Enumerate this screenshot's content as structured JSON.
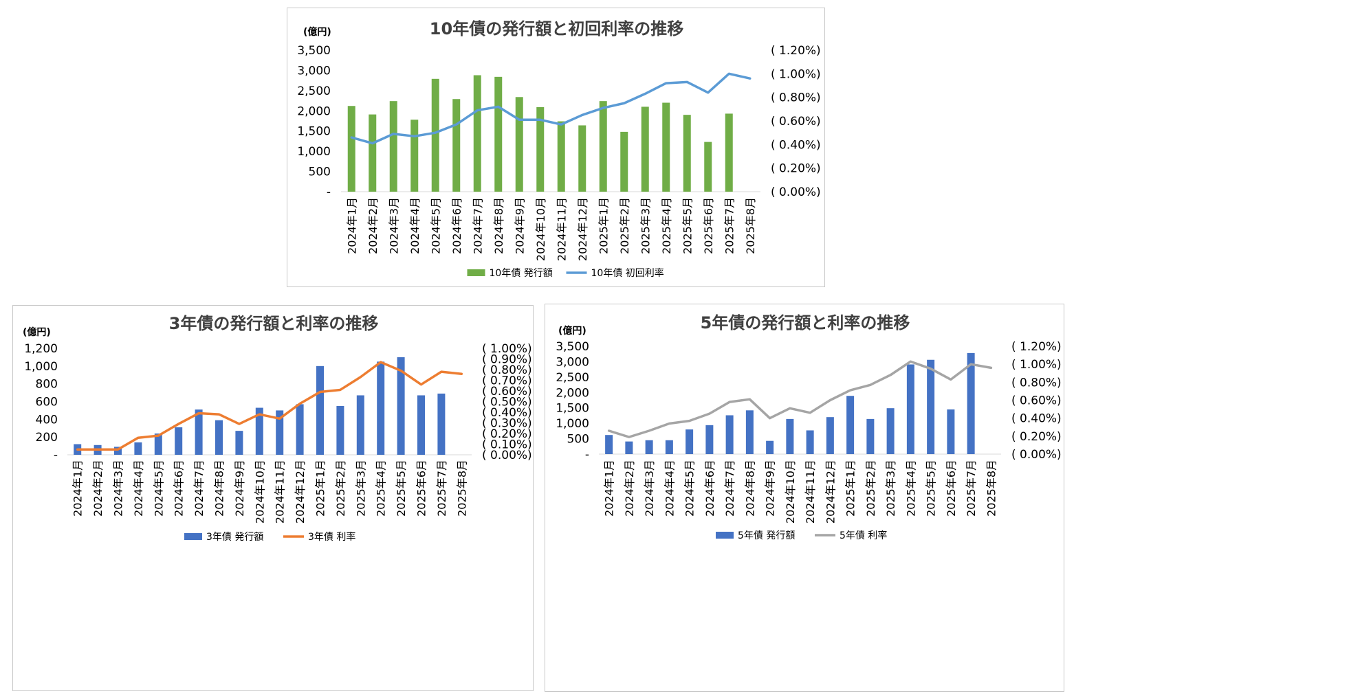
{
  "chart_data": [
    {
      "id": "10y",
      "type": "bar+line",
      "title": "10年債の発行額と初回利率の推移",
      "y_unit_label": "(億円)",
      "categories": [
        "2024年1月",
        "2024年2月",
        "2024年3月",
        "2024年4月",
        "2024年5月",
        "2024年6月",
        "2024年7月",
        "2024年8月",
        "2024年9月",
        "2024年10月",
        "2024年11月",
        "2024年12月",
        "2025年1月",
        "2025年2月",
        "2025年3月",
        "2025年4月",
        "2025年5月",
        "2025年6月",
        "2025年7月",
        "2025年8月"
      ],
      "y_ticks": [
        "-",
        "500",
        "1,000",
        "1,500",
        "2,000",
        "2,500",
        "3,000",
        "3,500"
      ],
      "y2_ticks": [
        "( 0.00%)",
        "( 0.20%)",
        "( 0.40%)",
        "( 0.60%)",
        "( 0.80%)",
        "( 1.00%)",
        "( 1.20%)"
      ],
      "ylim": [
        0,
        3500
      ],
      "y2lim": [
        0,
        1.2
      ],
      "bar_series": {
        "name": "10年債 発行額",
        "color": "#70ad47",
        "values": [
          2120,
          1910,
          2240,
          1780,
          2790,
          2290,
          2880,
          2840,
          2340,
          2090,
          1740,
          1640,
          2240,
          1480,
          2100,
          2200,
          1900,
          1230,
          1930,
          null
        ]
      },
      "line_series": {
        "name": "10年債 初回利率",
        "color": "#5b9bd5",
        "values": [
          0.46,
          0.41,
          0.49,
          0.47,
          0.5,
          0.57,
          0.69,
          0.72,
          0.61,
          0.61,
          0.57,
          0.65,
          0.71,
          0.75,
          0.83,
          0.92,
          0.93,
          0.84,
          1.0,
          0.96
        ]
      },
      "grid": false,
      "legend_position": "bottom"
    },
    {
      "id": "3y",
      "type": "bar+line",
      "title": "3年債の発行額と利率の推移",
      "y_unit_label": "(億円)",
      "categories": [
        "2024年1月",
        "2024年2月",
        "2024年3月",
        "2024年4月",
        "2024年5月",
        "2024年6月",
        "2024年7月",
        "2024年8月",
        "2024年9月",
        "2024年10月",
        "2024年11月",
        "2024年12月",
        "2025年1月",
        "2025年2月",
        "2025年3月",
        "2025年4月",
        "2025年5月",
        "2025年6月",
        "2025年7月",
        "2025年8月"
      ],
      "y_ticks": [
        "-",
        "200",
        "400",
        "600",
        "800",
        "1,000",
        "1,200"
      ],
      "y2_ticks": [
        "( 0.00%)",
        "( 0.10%)",
        "( 0.20%)",
        "( 0.30%)",
        "( 0.40%)",
        "( 0.50%)",
        "( 0.60%)",
        "( 0.70%)",
        "( 0.80%)",
        "( 0.90%)",
        "( 1.00%)"
      ],
      "ylim": [
        0,
        1200
      ],
      "y2lim": [
        0,
        1.0
      ],
      "bar_series": {
        "name": "3年債 発行額",
        "color": "#4472c4",
        "values": [
          120,
          110,
          90,
          140,
          240,
          310,
          510,
          390,
          270,
          530,
          500,
          570,
          1000,
          550,
          670,
          1050,
          1100,
          670,
          690,
          null
        ]
      },
      "line_series": {
        "name": "3年債 利率",
        "color": "#ed7d31",
        "values": [
          0.05,
          0.05,
          0.05,
          0.16,
          0.18,
          0.29,
          0.39,
          0.38,
          0.29,
          0.38,
          0.34,
          0.48,
          0.59,
          0.61,
          0.73,
          0.87,
          0.79,
          0.66,
          0.78,
          0.76
        ]
      },
      "grid": false,
      "legend_position": "bottom"
    },
    {
      "id": "5y",
      "type": "bar+line",
      "title": "5年債の発行額と利率の推移",
      "y_unit_label": "(億円)",
      "categories": [
        "2024年1月",
        "2024年2月",
        "2024年3月",
        "2024年4月",
        "2024年5月",
        "2024年6月",
        "2024年7月",
        "2024年8月",
        "2024年9月",
        "2024年10月",
        "2024年11月",
        "2024年12月",
        "2025年1月",
        "2025年2月",
        "2025年3月",
        "2025年4月",
        "2025年5月",
        "2025年6月",
        "2025年7月",
        "2025年8月"
      ],
      "y_ticks": [
        "-",
        "500",
        "1,000",
        "1,500",
        "2,000",
        "2,500",
        "3,000",
        "3,500"
      ],
      "y2_ticks": [
        "( 0.00%)",
        "( 0.20%)",
        "( 0.40%)",
        "( 0.60%)",
        "( 0.80%)",
        "( 1.00%)",
        "( 1.20%)"
      ],
      "ylim": [
        0,
        3500
      ],
      "y2lim": [
        0,
        1.2
      ],
      "bar_series": {
        "name": "5年債 発行額",
        "color": "#4472c4",
        "values": [
          620,
          410,
          450,
          450,
          800,
          940,
          1260,
          1420,
          430,
          1140,
          770,
          1200,
          1890,
          1140,
          1490,
          2910,
          3060,
          1450,
          3280,
          null
        ]
      },
      "line_series": {
        "name": "5年債 利率",
        "color": "#a5a5a5",
        "values": [
          0.26,
          0.19,
          0.26,
          0.34,
          0.37,
          0.45,
          0.58,
          0.61,
          0.4,
          0.51,
          0.46,
          0.6,
          0.71,
          0.77,
          0.88,
          1.03,
          0.95,
          0.83,
          1.0,
          0.96
        ]
      },
      "grid": false,
      "legend_position": "bottom"
    }
  ]
}
